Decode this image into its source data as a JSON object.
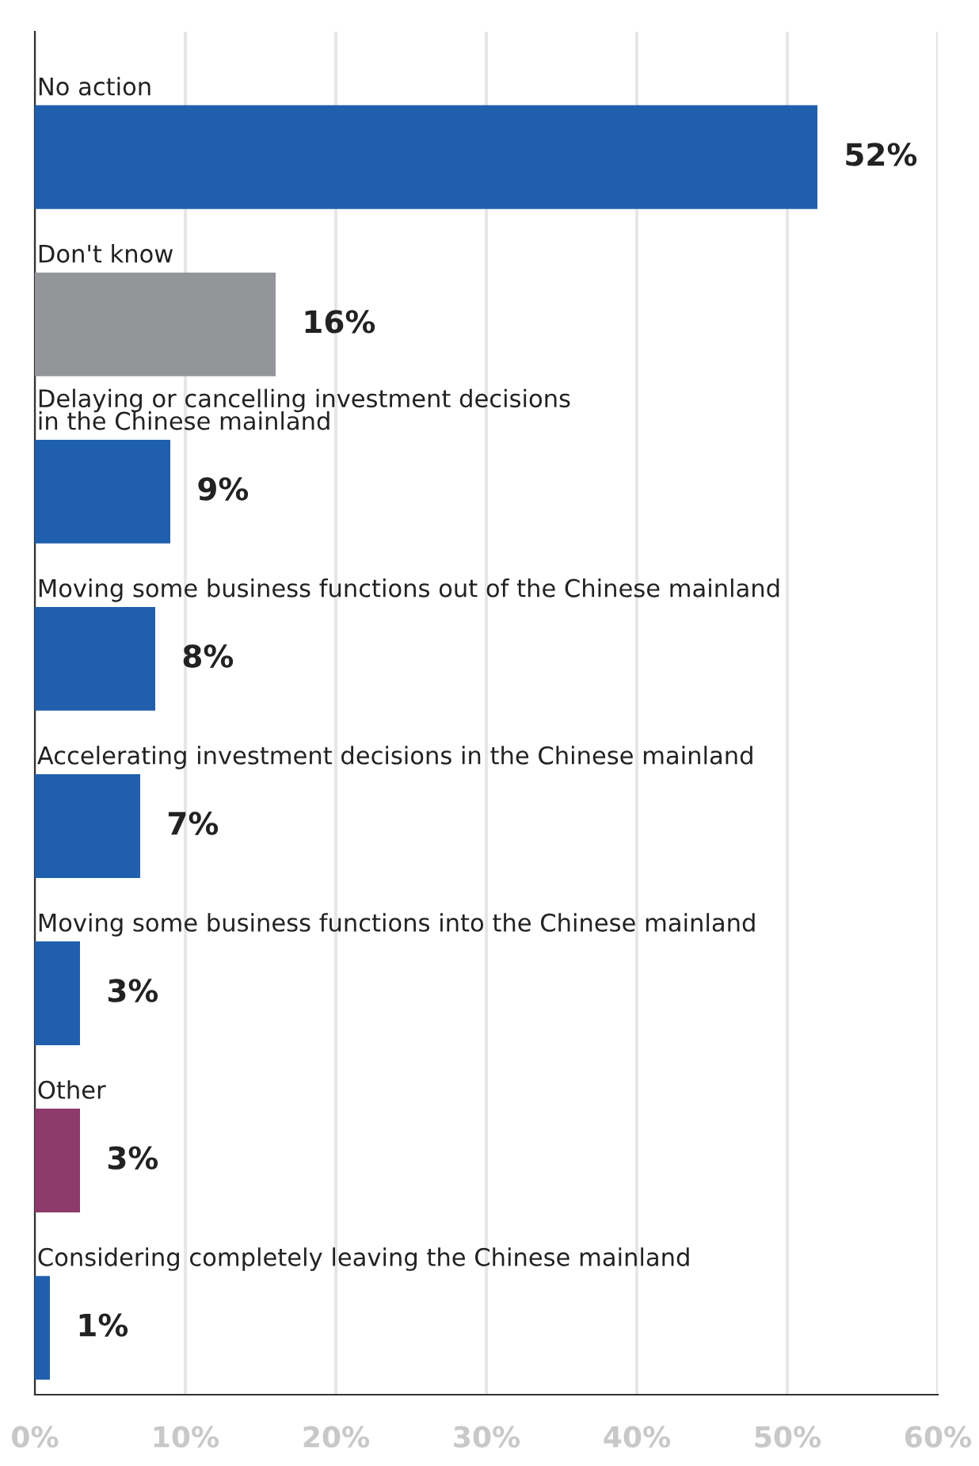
{
  "chart_data": {
    "type": "bar",
    "orientation": "horizontal",
    "categories": [
      "No action",
      "Don't know",
      "Delaying or cancelling investment decisions\nin the Chinese mainland",
      "Moving some business functions out of the Chinese mainland",
      "Accelerating investment decisions in the Chinese mainland",
      "Moving some business functions into the Chinese mainland",
      "Other",
      "Considering completely leaving the Chinese mainland"
    ],
    "values": [
      52,
      16,
      9,
      8,
      7,
      3,
      3,
      1
    ],
    "colors": [
      "#1f5fad",
      "#939598",
      "#1f5fad",
      "#1f5fad",
      "#1f5fad",
      "#1f5fad",
      "#8e3a6b",
      "#1f5fad"
    ],
    "value_labels": [
      "52%",
      "16%",
      "9%",
      "8%",
      "7%",
      "3%",
      "3%",
      "1%"
    ],
    "xlim": [
      0,
      60
    ],
    "xticks": [
      {
        "value": 0,
        "label": "0%"
      },
      {
        "value": 10,
        "label": "10%"
      },
      {
        "value": 20,
        "label": "20%"
      },
      {
        "value": 30,
        "label": "30%"
      },
      {
        "value": 40,
        "label": "40%"
      },
      {
        "value": 50,
        "label": "50%"
      },
      {
        "value": 60,
        "label": "60%"
      }
    ],
    "grid": "x"
  }
}
